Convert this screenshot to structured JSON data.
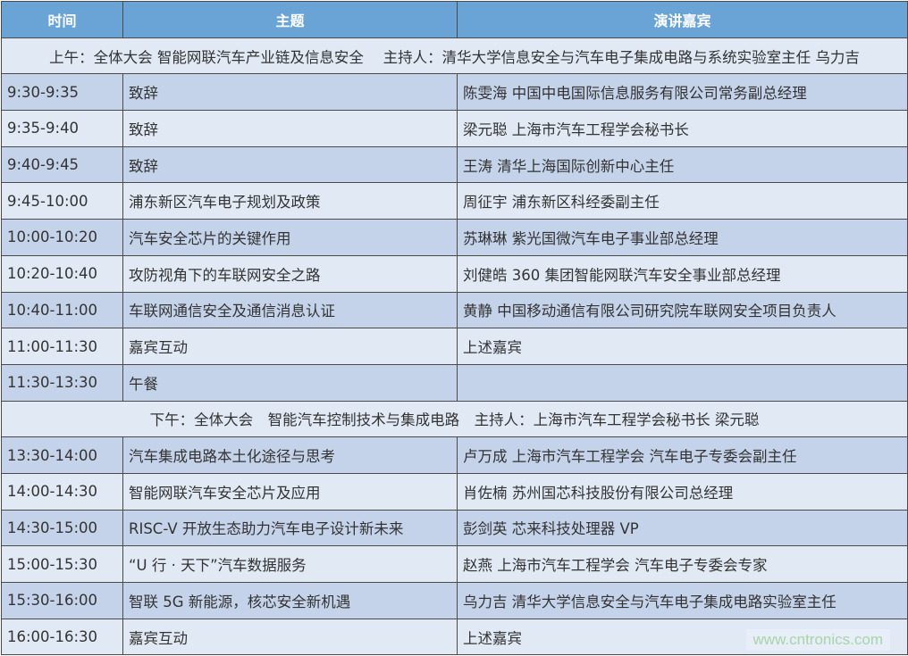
{
  "headers": {
    "time": "时间",
    "topic": "主题",
    "speaker": "演讲嘉宾"
  },
  "sessions": [
    {
      "title": "上午：全体大会 智能网联汽车产业链及信息安全　 主持人：清华大学信息安全与汽车电子集成电路与系统实验室主任 乌力吉",
      "rows": [
        {
          "time": "9:30-9:35",
          "topic": "致辞",
          "speaker": "陈雯海 中国中电国际信息服务有限公司常务副总经理"
        },
        {
          "time": "9:35-9:40",
          "topic": "致辞",
          "speaker": "梁元聪 上海市汽车工程学会秘书长"
        },
        {
          "time": "9:40-9:45",
          "topic": "致辞",
          "speaker": "王涛 清华上海国际创新中心主任"
        },
        {
          "time": "9:45-10:00",
          "topic": "浦东新区汽车电子规划及政策",
          "speaker": "周征宇 浦东新区科经委副主任"
        },
        {
          "time": "10:00-10:20",
          "topic": "汽车安全芯片的关键作用",
          "speaker": "苏琳琳 紫光国微汽车电子事业部总经理"
        },
        {
          "time": "10:20-10:40",
          "topic": "攻防视角下的车联网安全之路",
          "speaker": "刘健皓 360 集团智能网联汽车安全事业部总经理"
        },
        {
          "time": "10:40-11:00",
          "topic": "车联网通信安全及通信消息认证",
          "speaker": "黄静 中国移动通信有限公司研究院车联网安全项目负责人"
        },
        {
          "time": "11:00-11:30",
          "topic": "嘉宾互动",
          "speaker": "上述嘉宾"
        },
        {
          "time": "11:30-13:30",
          "topic": "午餐",
          "speaker": ""
        }
      ]
    },
    {
      "title": "下午：全体大会　智能汽车控制技术与集成电路　主持人：上海市汽车工程学会秘书长 梁元聪",
      "rows": [
        {
          "time": "13:30-14:00",
          "topic": "汽车集成电路本土化途径与思考",
          "speaker": "卢万成 上海市汽车工程学会 汽车电子专委会副主任"
        },
        {
          "time": "14:00-14:30",
          "topic": "智能网联汽车安全芯片及应用",
          "speaker": "肖佐楠 苏州国芯科技股份有限公司总经理"
        },
        {
          "time": "14:30-15:00",
          "topic": "RISC-V 开放生态助力汽车电子设计新未来",
          "speaker": "彭剑英 芯来科技处理器 VP"
        },
        {
          "time": "15:00-15:30",
          "topic": "“U 行 · 天下”汽车数据服务",
          "speaker": "赵燕 上海市汽车工程学会 汽车电子专委会专家"
        },
        {
          "time": "15:30-16:00",
          "topic": "智联 5G 新能源，核芯安全新机遇",
          "speaker": "乌力吉 清华大学信息安全与汽车电子集成电路实验室主任"
        },
        {
          "time": "16:00-16:30",
          "topic": "嘉宾互动",
          "speaker": "上述嘉宾"
        }
      ]
    }
  ],
  "watermark": "www.cntronics.com",
  "colors": {
    "header": "#6aa3d5",
    "row_dark": "#c4d3ea",
    "row_light": "#e1e9f5"
  }
}
